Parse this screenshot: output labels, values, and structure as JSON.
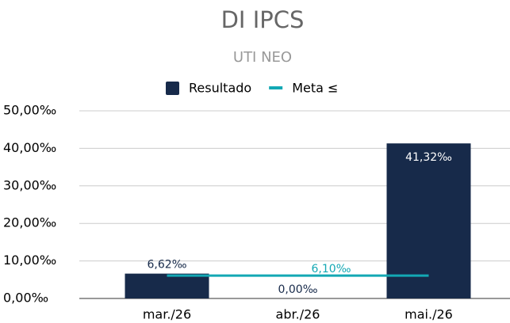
{
  "chart_data": {
    "type": "bar_line",
    "title": "DI IPCS",
    "subtitle": "UTI NEO",
    "categories": [
      "mar./26",
      "abr./26",
      "mai./26"
    ],
    "series": [
      {
        "name": "Resultado",
        "type": "bar",
        "color": "#172a4a",
        "values": [
          6.62,
          0,
          41.32
        ],
        "value_labels": [
          "6,62‰",
          "0,00‰",
          "41,32‰"
        ]
      },
      {
        "name": "Meta ≤",
        "type": "line",
        "color": "#13a8b4",
        "values": [
          6.1,
          6.1,
          6.1
        ],
        "value_labels": [
          null,
          "6,10‰",
          null
        ]
      }
    ],
    "ylim": [
      0,
      50
    ],
    "yticks": [
      {
        "value": 0,
        "label": "0,00‰"
      },
      {
        "value": 10,
        "label": "10,00‰"
      },
      {
        "value": 20,
        "label": "20,00‰"
      },
      {
        "value": 30,
        "label": "30,00‰"
      },
      {
        "value": 40,
        "label": "40,00‰"
      },
      {
        "value": 50,
        "label": "50,00‰"
      }
    ],
    "grid": true,
    "legend": "top"
  }
}
